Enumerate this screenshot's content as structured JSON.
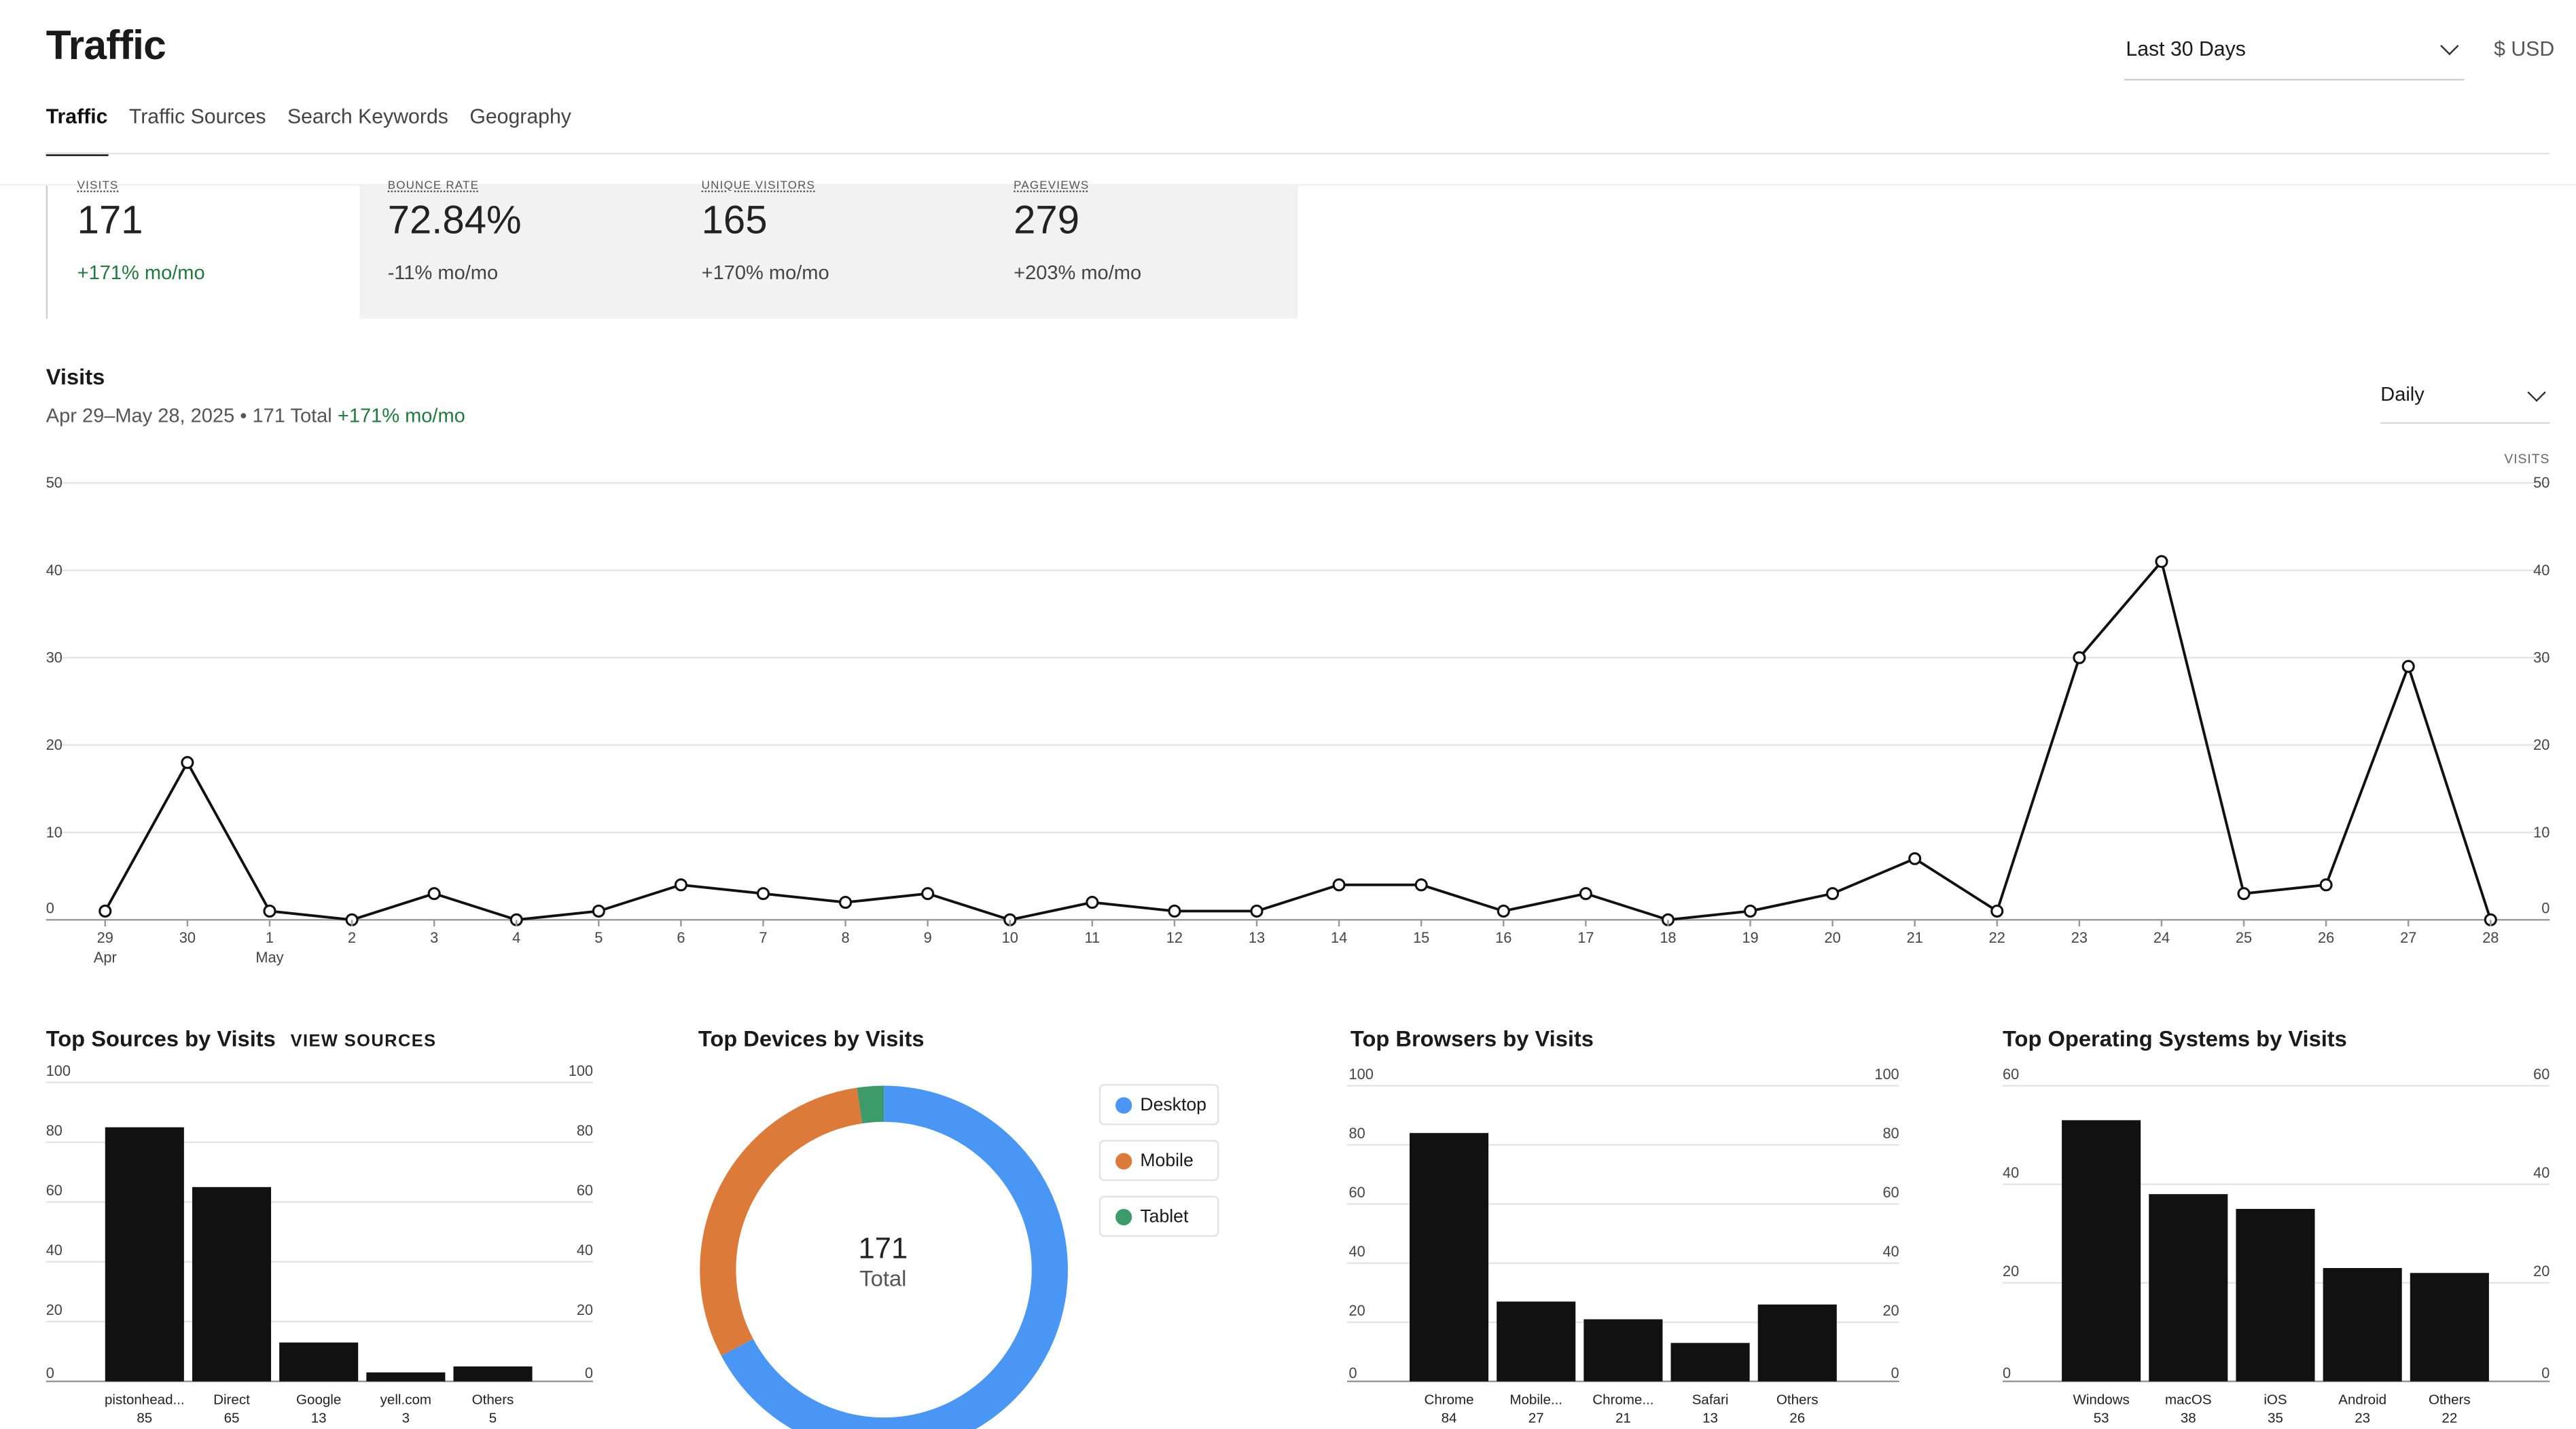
{
  "header": {
    "title": "Traffic",
    "tabs": [
      {
        "label": "Traffic",
        "active": true
      },
      {
        "label": "Traffic Sources",
        "active": false
      },
      {
        "label": "Search Keywords",
        "active": false
      },
      {
        "label": "Geography",
        "active": false
      }
    ],
    "date_range": "Last 30 Days",
    "currency": "$ USD"
  },
  "kpis": [
    {
      "label": "VISITS",
      "value": "171",
      "change": "+171% mo/mo",
      "positive": true
    },
    {
      "label": "BOUNCE RATE",
      "value": "72.84%",
      "change": "-11% mo/mo",
      "positive": false
    },
    {
      "label": "UNIQUE VISITORS",
      "value": "165",
      "change": "+170% mo/mo",
      "positive": false
    },
    {
      "label": "PAGEVIEWS",
      "value": "279",
      "change": "+203% mo/mo",
      "positive": false
    }
  ],
  "visits_chart": {
    "title": "Visits",
    "subtitle": "Apr 29–May 28, 2025 • 171 Total",
    "subtitle_change": "+171% mo/mo",
    "granularity": "Daily",
    "right_axis_label": "VISITS"
  },
  "top_sources": {
    "title": "Top Sources by Visits",
    "link": "VIEW SOURCES"
  },
  "top_devices": {
    "title": "Top Devices by Visits",
    "total_value": "171",
    "total_label": "Total",
    "legend": [
      {
        "label": "Desktop",
        "color": "#4a96f5"
      },
      {
        "label": "Mobile",
        "color": "#dc7a3a"
      },
      {
        "label": "Tablet",
        "color": "#3d9b6b"
      }
    ]
  },
  "top_browsers": {
    "title": "Top Browsers by Visits"
  },
  "top_os": {
    "title": "Top Operating Systems by Visits"
  },
  "chart_data": [
    {
      "type": "line",
      "title": "Visits",
      "ylabel": "VISITS",
      "x": [
        "29",
        "30",
        "1",
        "2",
        "3",
        "4",
        "5",
        "6",
        "7",
        "8",
        "9",
        "10",
        "11",
        "12",
        "13",
        "14",
        "15",
        "16",
        "17",
        "18",
        "19",
        "20",
        "21",
        "22",
        "23",
        "24",
        "25",
        "26",
        "27",
        "28"
      ],
      "x_sublabels": {
        "0": "Apr",
        "2": "May"
      },
      "values": [
        1,
        18,
        1,
        0,
        3,
        0,
        1,
        4,
        3,
        2,
        3,
        0,
        2,
        1,
        1,
        4,
        4,
        1,
        3,
        0,
        1,
        3,
        7,
        1,
        30,
        41,
        3,
        4,
        29,
        0
      ],
      "ylim": [
        0,
        50
      ],
      "yticks": [
        0,
        10,
        20,
        30,
        40,
        50
      ],
      "grid": true
    },
    {
      "type": "bar",
      "title": "Top Sources by Visits",
      "categories": [
        "pistonhead...",
        "Direct",
        "Google",
        "yell.com",
        "Others"
      ],
      "values": [
        85,
        65,
        13,
        3,
        5
      ],
      "ylim": [
        0,
        100
      ],
      "yticks": [
        0,
        20,
        40,
        60,
        80,
        100
      ]
    },
    {
      "type": "pie",
      "title": "Top Devices by Visits",
      "categories": [
        "Desktop",
        "Mobile",
        "Tablet"
      ],
      "values": [
        115,
        52,
        4
      ]
    },
    {
      "type": "bar",
      "title": "Top Browsers by Visits",
      "categories": [
        "Chrome",
        "Mobile...",
        "Chrome...",
        "Safari",
        "Others"
      ],
      "values": [
        84,
        27,
        21,
        13,
        26
      ],
      "ylim": [
        0,
        100
      ],
      "yticks": [
        0,
        20,
        40,
        60,
        80,
        100
      ]
    },
    {
      "type": "bar",
      "title": "Top Operating Systems by Visits",
      "categories": [
        "Windows",
        "macOS",
        "iOS",
        "Android",
        "Others"
      ],
      "values": [
        53,
        38,
        35,
        23,
        22
      ],
      "ylim": [
        0,
        60
      ],
      "yticks": [
        0,
        20,
        40,
        60
      ]
    }
  ]
}
